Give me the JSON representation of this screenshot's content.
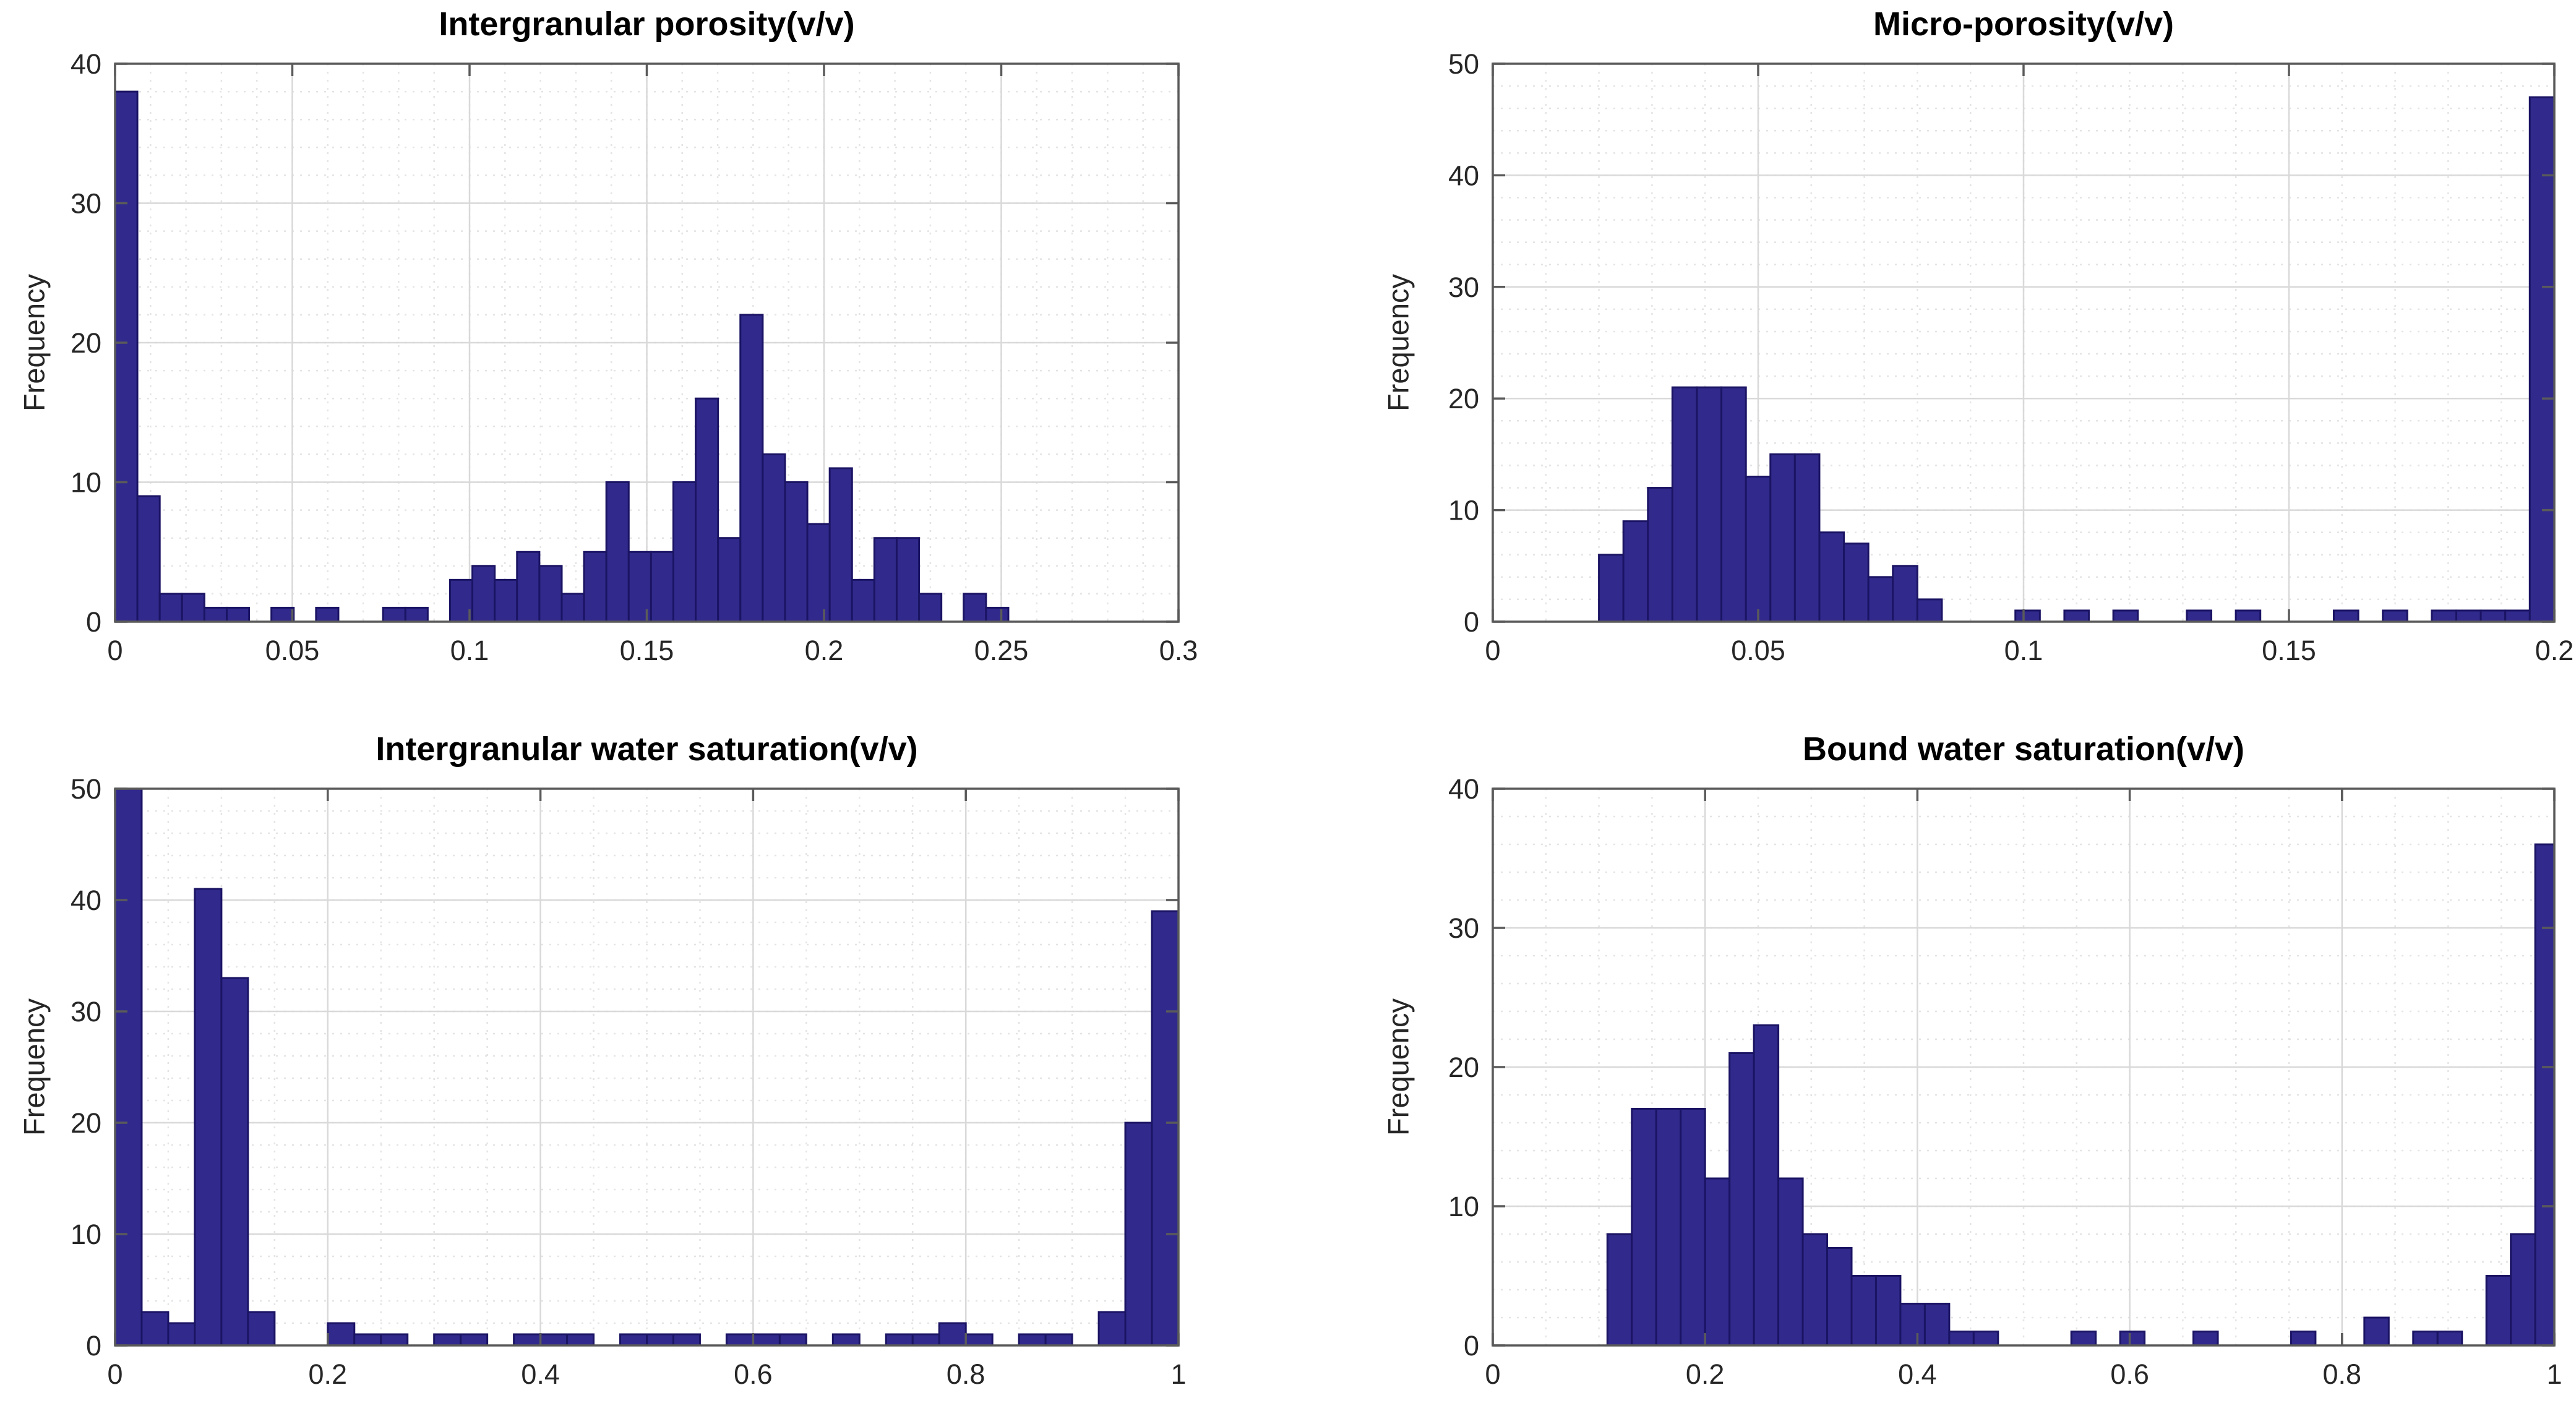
{
  "figure": {
    "background": "#ffffff",
    "bar_fill": "#312a8c",
    "bar_edge": "#1b1464",
    "axis_color": "#5a5a5a",
    "tick_label_color": "#262626",
    "title_color": "#000000",
    "grid_major_color": "#d9d9d9",
    "grid_minor_color": "#e4e4e4"
  },
  "chart_data": [
    {
      "type": "histogram",
      "title": "Intergranular porosity(v/v)",
      "ylabel": "Frequency",
      "xlabel": "",
      "xlim": [
        0,
        0.3
      ],
      "ylim": [
        0,
        40
      ],
      "xticks": [
        0,
        0.05,
        0.1,
        0.15,
        0.2,
        0.25,
        0.3
      ],
      "xtick_labels": [
        "0",
        "0.05",
        "0.1",
        "0.15",
        "0.2",
        "0.25",
        "0.3"
      ],
      "yticks": [
        0,
        10,
        20,
        30,
        40
      ],
      "ytick_labels": [
        "0",
        "10",
        "20",
        "30",
        "40"
      ],
      "x_minor_step": 0.01,
      "y_minor_step": 2,
      "grid": true,
      "bin_start": 0,
      "bin_width": 0.0063,
      "counts": [
        38,
        9,
        2,
        2,
        1,
        1,
        0,
        1,
        0,
        1,
        0,
        0,
        1,
        1,
        0,
        3,
        4,
        3,
        5,
        4,
        2,
        5,
        10,
        5,
        5,
        10,
        16,
        6,
        22,
        12,
        10,
        7,
        11,
        3,
        6,
        6,
        2,
        0,
        2,
        1
      ]
    },
    {
      "type": "histogram",
      "title": "Micro-porosity(v/v)",
      "ylabel": "Frequency",
      "xlabel": "",
      "xlim": [
        0,
        0.2
      ],
      "ylim": [
        0,
        50
      ],
      "xticks": [
        0,
        0.05,
        0.1,
        0.15,
        0.2
      ],
      "xtick_labels": [
        "0",
        "0.05",
        "0.1",
        "0.15",
        "0.2"
      ],
      "yticks": [
        0,
        10,
        20,
        30,
        40,
        50
      ],
      "ytick_labels": [
        "0",
        "10",
        "20",
        "30",
        "40",
        "50"
      ],
      "x_minor_step": 0.01,
      "y_minor_step": 2,
      "grid": true,
      "bin_start": 0.02,
      "bin_width": 0.004615,
      "counts": [
        6,
        9,
        12,
        21,
        21,
        21,
        13,
        15,
        15,
        8,
        7,
        4,
        5,
        2,
        0,
        0,
        0,
        1,
        0,
        1,
        0,
        1,
        0,
        0,
        1,
        0,
        1,
        0,
        0,
        0,
        1,
        0,
        1,
        0,
        1,
        1,
        1,
        1,
        47
      ]
    },
    {
      "type": "histogram",
      "title": "Intergranular water saturation(v/v)",
      "ylabel": "Frequency",
      "xlabel": "",
      "xlim": [
        0,
        1
      ],
      "ylim": [
        0,
        50
      ],
      "xticks": [
        0,
        0.2,
        0.4,
        0.6,
        0.8,
        1
      ],
      "xtick_labels": [
        "0",
        "0.2",
        "0.4",
        "0.6",
        "0.8",
        "1"
      ],
      "yticks": [
        0,
        10,
        20,
        30,
        40,
        50
      ],
      "ytick_labels": [
        "0",
        "10",
        "20",
        "30",
        "40",
        "50"
      ],
      "x_minor_step": 0.05,
      "y_minor_step": 2,
      "grid": true,
      "bin_start": 0,
      "bin_width": 0.025,
      "counts": [
        50,
        3,
        2,
        41,
        33,
        3,
        0,
        0,
        2,
        1,
        1,
        0,
        1,
        1,
        0,
        1,
        1,
        1,
        0,
        1,
        1,
        1,
        0,
        1,
        1,
        1,
        0,
        1,
        0,
        1,
        1,
        2,
        1,
        0,
        1,
        1,
        0,
        3,
        20,
        39
      ]
    },
    {
      "type": "histogram",
      "title": "Bound water saturation(v/v)",
      "ylabel": "Frequency",
      "xlabel": "",
      "xlim": [
        0,
        1
      ],
      "ylim": [
        0,
        40
      ],
      "xticks": [
        0,
        0.2,
        0.4,
        0.6,
        0.8,
        1
      ],
      "xtick_labels": [
        "0",
        "0.2",
        "0.4",
        "0.6",
        "0.8",
        "1"
      ],
      "yticks": [
        0,
        10,
        20,
        30,
        40
      ],
      "ytick_labels": [
        "0",
        "10",
        "20",
        "30",
        "40"
      ],
      "x_minor_step": 0.05,
      "y_minor_step": 2,
      "grid": true,
      "bin_start": 0.108,
      "bin_width": 0.023,
      "counts": [
        8,
        17,
        17,
        17,
        12,
        21,
        23,
        12,
        8,
        7,
        5,
        5,
        3,
        3,
        1,
        1,
        0,
        0,
        0,
        1,
        0,
        1,
        0,
        0,
        1,
        0,
        0,
        0,
        1,
        0,
        0,
        2,
        0,
        1,
        1,
        0,
        5,
        8,
        36
      ]
    }
  ]
}
